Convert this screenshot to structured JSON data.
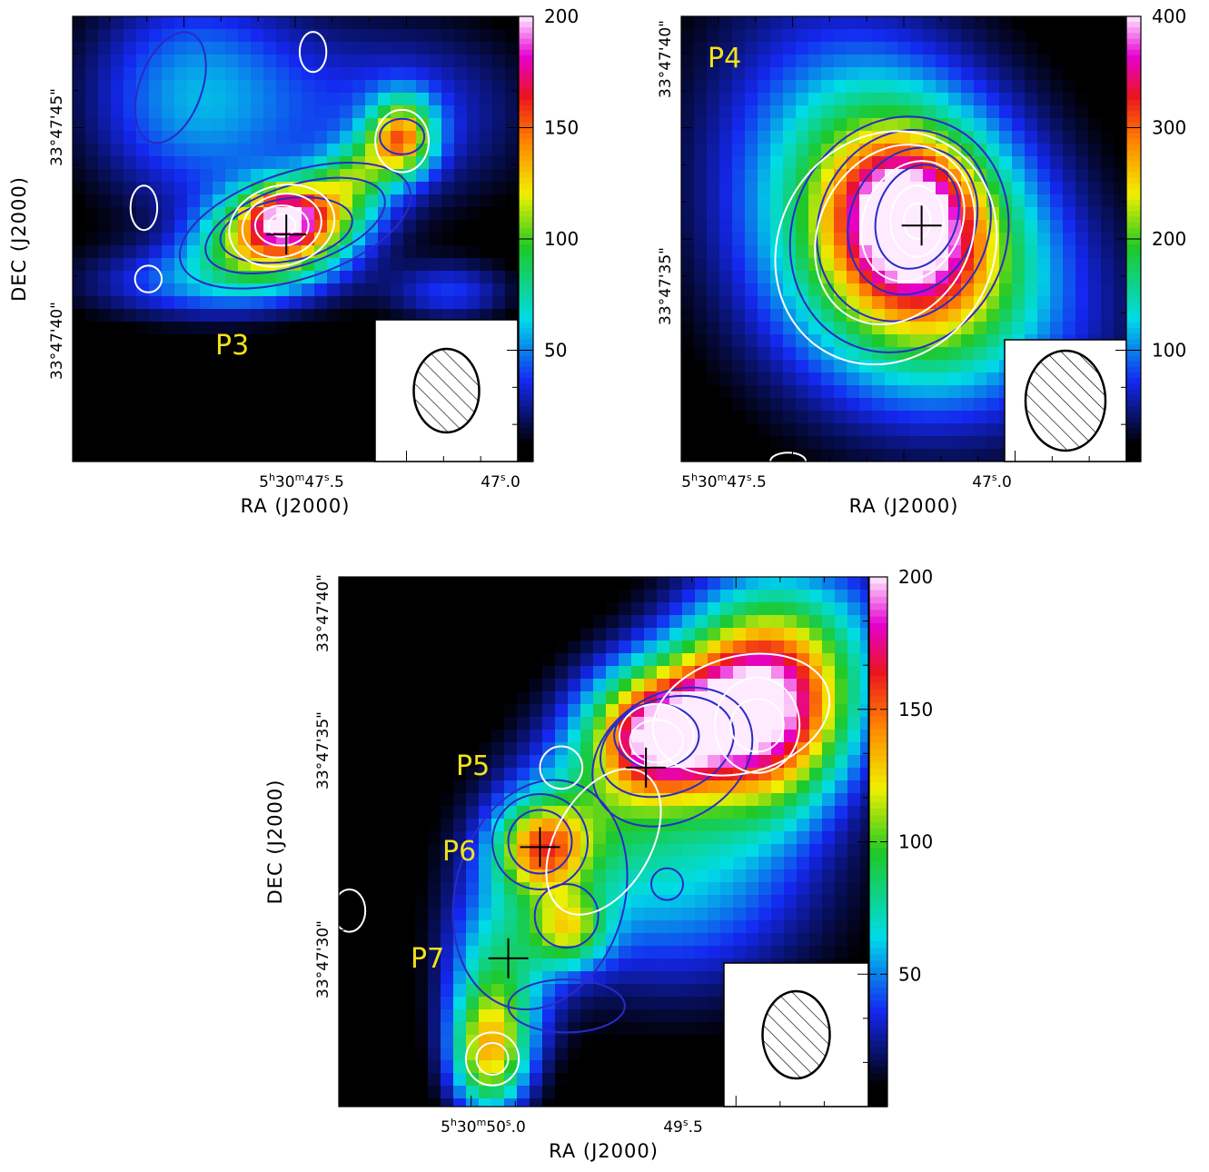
{
  "chart_data": [
    {
      "type": "heatmap",
      "panel": "top-left",
      "xlabel": "RA (J2000)",
      "ylabel": "DEC (J2000)",
      "x_tick_labels": [
        "5h30m47s.5",
        "47s.0"
      ],
      "x_tick_display": [
        {
          "pre": "5",
          "sup1": "h",
          "mid": "30",
          "sup2": "m",
          "num": "47",
          "sup3": "s",
          "frac": ".5"
        },
        {
          "pre": "",
          "sup1": "",
          "mid": "",
          "sup2": "",
          "num": "47",
          "sup3": "s",
          "frac": ".0"
        }
      ],
      "y_tick_labels": [
        "33°47'45\"",
        "33°47'40\""
      ],
      "colorbar": {
        "min": 0,
        "max": 200,
        "ticks": [
          50,
          100,
          150,
          200
        ],
        "tick_labels": [
          "50",
          "100",
          "150",
          "200"
        ]
      },
      "peaks": [
        {
          "label": "P3",
          "marker": "cross"
        }
      ],
      "beam": "hatched ellipse, lower-right inset",
      "contours": [
        "blue",
        "white"
      ]
    },
    {
      "type": "heatmap",
      "panel": "top-right",
      "xlabel": "RA (J2000)",
      "ylabel": "",
      "x_tick_labels": [
        "5h30m47s.5",
        "47s.0"
      ],
      "x_tick_display": [
        {
          "pre": "5",
          "sup1": "h",
          "mid": "30",
          "sup2": "m",
          "num": "47",
          "sup3": "s",
          "frac": ".5"
        },
        {
          "pre": "",
          "sup1": "",
          "mid": "",
          "sup2": "",
          "num": "47",
          "sup3": "s",
          "frac": ".0"
        }
      ],
      "y_tick_labels": [
        "33°47'40\"",
        "33°47'35\""
      ],
      "colorbar": {
        "min": 0,
        "max": 400,
        "ticks": [
          100,
          200,
          300,
          400
        ],
        "tick_labels": [
          "100",
          "200",
          "300",
          "400"
        ]
      },
      "peaks": [
        {
          "label": "P4",
          "marker": "cross"
        }
      ],
      "beam": "hatched ellipse, lower-right inset",
      "contours": [
        "blue",
        "white"
      ]
    },
    {
      "type": "heatmap",
      "panel": "bottom",
      "xlabel": "RA (J2000)",
      "ylabel": "DEC (J2000)",
      "x_tick_labels": [
        "5h30m50s.0",
        "49s.5"
      ],
      "x_tick_display": [
        {
          "pre": "5",
          "sup1": "h",
          "mid": "30",
          "sup2": "m",
          "num": "50",
          "sup3": "s",
          "frac": ".0"
        },
        {
          "pre": "",
          "sup1": "",
          "mid": "",
          "sup2": "",
          "num": "49",
          "sup3": "s",
          "frac": ".5"
        }
      ],
      "y_tick_labels": [
        "33°47'40\"",
        "33°47'35\"",
        "33°47'30\""
      ],
      "colorbar": {
        "min": 0,
        "max": 200,
        "ticks": [
          50,
          100,
          150,
          200
        ],
        "tick_labels": [
          "50",
          "100",
          "150",
          "200"
        ]
      },
      "peaks": [
        {
          "label": "P5",
          "marker": "cross"
        },
        {
          "label": "P6",
          "marker": "cross"
        },
        {
          "label": "P7",
          "marker": "cross"
        }
      ],
      "beam": "hatched ellipse, lower-right inset",
      "contours": [
        "blue",
        "white"
      ]
    }
  ]
}
